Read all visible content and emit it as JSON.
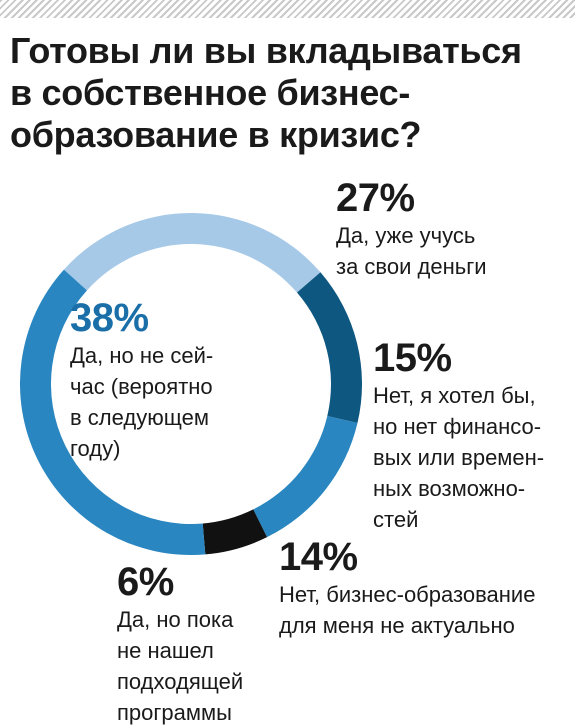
{
  "title_lines": [
    "Готовы ли вы вкладываться",
    "в собственное бизнес-",
    "образование в кризис?"
  ],
  "colors": {
    "light_blue": "#a7c9e8",
    "dark_blue": "#0e5780",
    "mid_blue": "#2a86c0",
    "black": "#111111",
    "pct_blue": "#1b6fa8"
  },
  "chart_data": {
    "type": "pie",
    "title": "Готовы ли вы вкладываться в собственное бизнес-образование в кризис?",
    "slices": [
      {
        "value": 27,
        "pct_label": "27%",
        "color": "#a7c9e8",
        "label_lines": [
          "Да, уже учусь",
          "за свои деньги"
        ]
      },
      {
        "value": 15,
        "pct_label": "15%",
        "color": "#0e5780",
        "label_lines": [
          "Нет, я хотел бы,",
          "но нет финансо-",
          "вых или времен-",
          "ных возможно-",
          "стей"
        ]
      },
      {
        "value": 14,
        "pct_label": "14%",
        "color": "#2a86c0",
        "label_lines": [
          "Нет, бизнес-образование",
          "для меня не актуально"
        ]
      },
      {
        "value": 6,
        "pct_label": "6%",
        "color": "#111111",
        "label_lines": [
          "Да, но пока",
          "не нашел",
          "подходящей",
          "программы"
        ]
      },
      {
        "value": 38,
        "pct_label": "38%",
        "color": "#2a86c0",
        "label_lines": [
          "Да, но не сей-",
          "час (вероятно",
          "в следующем",
          "году)"
        ]
      }
    ]
  }
}
